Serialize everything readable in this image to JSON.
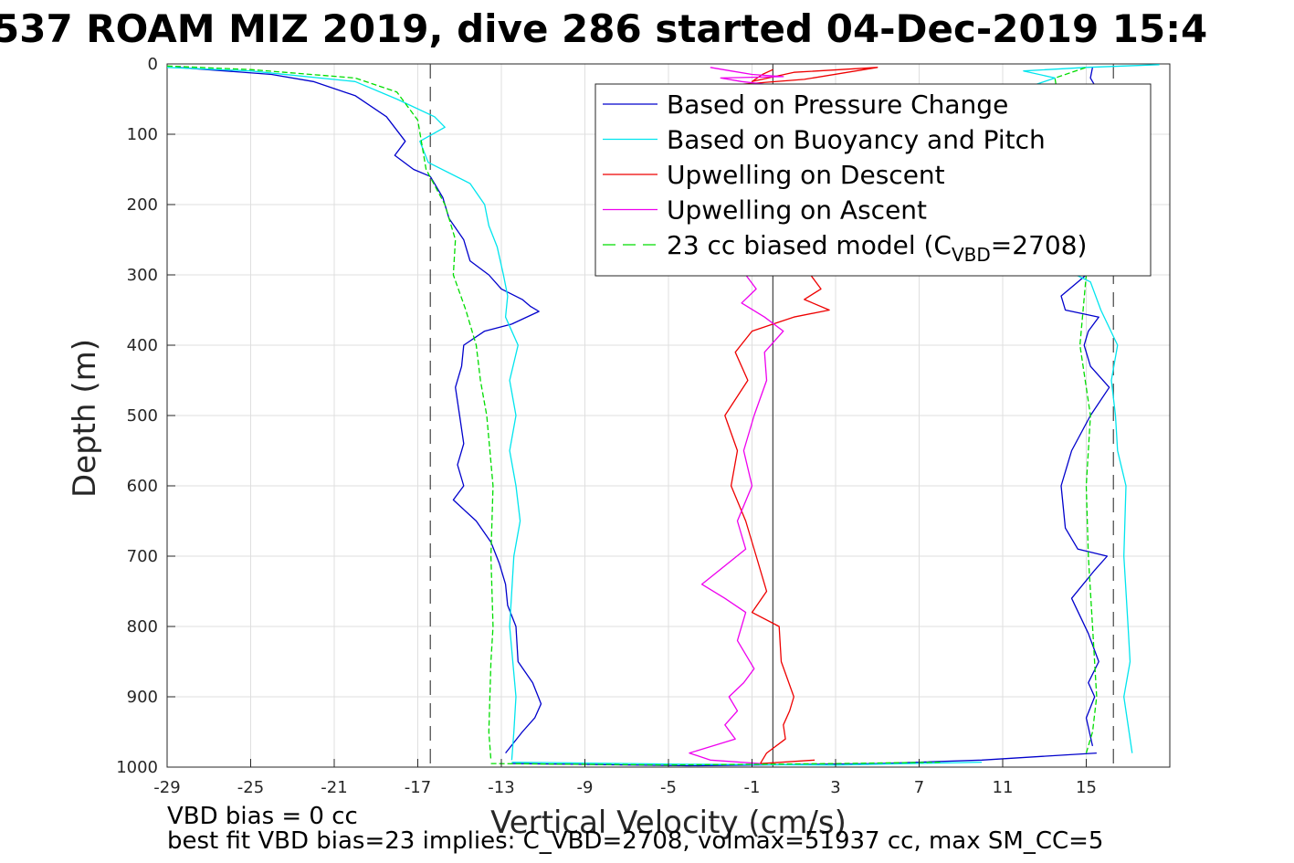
{
  "chart_data": {
    "type": "line",
    "title": "537 ROAM MIZ 2019, dive 286 started 04-Dec-2019 15:4",
    "xlabel": "Vertical Velocity (cm/s)",
    "ylabel": "Depth (m)",
    "xlim": [
      -29,
      19
    ],
    "ylim": [
      0,
      1000
    ],
    "y_reversed": true,
    "grid": true,
    "x_ticks": [
      -29,
      -25,
      -21,
      -17,
      -13,
      -9,
      -5,
      -1,
      3,
      7,
      11,
      15
    ],
    "y_ticks": [
      0,
      100,
      200,
      300,
      400,
      500,
      600,
      700,
      800,
      900,
      1000
    ],
    "legend_position": "top-right",
    "legend": [
      {
        "label": "Based on Pressure Change",
        "color": "#0000cc",
        "dash": "solid"
      },
      {
        "label": "Based on Buoyancy and Pitch",
        "color": "#00e5ee",
        "dash": "solid"
      },
      {
        "label": "Upwelling on Descent",
        "color": "#ee0000",
        "dash": "solid"
      },
      {
        "label": "Upwelling on Ascent",
        "color": "#ee00ee",
        "dash": "solid"
      },
      {
        "label": "23 cc biased model (C",
        "sub": "VBD",
        "suffix": "=2708)",
        "color": "#00dd00",
        "dash": "dashed"
      }
    ],
    "reference_lines": {
      "dashed_x": [
        -16.4,
        16.3
      ],
      "solid_x": [
        0.0
      ]
    },
    "series": [
      {
        "name": "Based on Pressure Change",
        "color": "#0000cc",
        "groups": [
          {
            "x": [
              -28.5,
              -24,
              -22,
              -20,
              -18.5,
              -17.6,
              -18.1,
              -17.2,
              -16.4,
              -15.8,
              -15.5,
              -14.8,
              -14.5,
              -13.6,
              -13.0,
              -12.0,
              -11.6,
              -11.2,
              -12.5,
              -13.8,
              -14.8,
              -14.9,
              -15.2,
              -15.0,
              -14.8,
              -15.1,
              -14.8,
              -15.3,
              -14.2,
              -13.5,
              -13.1,
              -12.8,
              -12.7,
              -12.3,
              -12.2,
              -11.5,
              -11.1,
              -11.4,
              -12.0,
              -12.8
            ],
            "y": [
              5,
              15,
              25,
              45,
              75,
              110,
              130,
              150,
              160,
              190,
              220,
              250,
              280,
              300,
              320,
              335,
              345,
              352,
              370,
              380,
              400,
              430,
              460,
              500,
              540,
              570,
              600,
              620,
              650,
              680,
              710,
              740,
              770,
              800,
              850,
              880,
              910,
              930,
              950,
              980
            ]
          },
          {
            "x": [
              -12.5,
              -4,
              5,
              10,
              15.5
            ],
            "y": [
              995,
              998,
              995,
              990,
              980
            ]
          },
          {
            "x": [
              15.3,
              15.0,
              15.4,
              15.1,
              15.6,
              15.1,
              14.3,
              15.4,
              16.0,
              14.6,
              14.0,
              13.8,
              14.3,
              15.2,
              16.1,
              15.2,
              14.9,
              15.1,
              15.6,
              14.0,
              13.8,
              14.6,
              15.4,
              15.2,
              14.6,
              15.6,
              15.2,
              15.3
            ],
            "y": [
              970,
              930,
              900,
              880,
              850,
              810,
              760,
              720,
              700,
              690,
              660,
              600,
              550,
              500,
              460,
              430,
              400,
              380,
              360,
              350,
              330,
              310,
              290,
              280,
              80,
              40,
              20,
              5
            ]
          }
        ]
      },
      {
        "name": "Based on Buoyancy and Pitch",
        "color": "#00e5ee",
        "groups": [
          {
            "x": [
              -29,
              -25,
              -20,
              -18,
              -16.2,
              -15.7,
              -16.9,
              -16.5,
              -14.5,
              -13.8,
              -13.6,
              -13.2,
              -12.9,
              -12.7,
              -12.8,
              -12.2,
              -12.6,
              -12.3,
              -12.6,
              -12.3,
              -12.1,
              -12.4,
              -12.6,
              -12.3,
              -12.4,
              -12.5
            ],
            "y": [
              5,
              10,
              25,
              50,
              75,
              90,
              110,
              140,
              170,
              200,
              230,
              260,
              300,
              330,
              360,
              400,
              450,
              500,
              550,
              600,
              650,
              700,
              800,
              900,
              950,
              990
            ]
          },
          {
            "x": [
              -12.5,
              -4,
              3,
              10
            ],
            "y": [
              993,
              996,
              997,
              993
            ]
          },
          {
            "x": [
              17.2,
              16.8,
              17.1,
              17.0,
              16.8,
              16.9,
              16.5,
              16.4,
              16.2,
              16.5,
              15.7,
              15.2,
              14.5,
              12.5,
              13.5,
              12.0,
              15.0,
              18.5
            ],
            "y": [
              980,
              900,
              850,
              800,
              700,
              600,
              550,
              500,
              450,
              400,
              350,
              310,
              300,
              30,
              20,
              10,
              5,
              1
            ]
          }
        ]
      },
      {
        "name": "Upwelling on Descent",
        "color": "#ee0000",
        "groups": [
          {
            "x": [
              -2.0,
              1.5,
              5.0,
              1.0,
              -1.0,
              -0.5,
              0.0
            ],
            "y": [
              30,
              22,
              5,
              12,
              25,
              15,
              8
            ]
          },
          {
            "x": [
              1.8,
              2.3,
              1.5,
              2.7,
              1.0,
              0.0,
              -1.0,
              -1.8,
              -1.2,
              -2.3,
              -1.7,
              -2.0,
              -1.3,
              -0.8,
              -0.3,
              -1.0,
              0.3,
              0.4,
              1.0,
              0.8,
              0.5,
              0.6,
              -0.3,
              -0.6,
              2.0
            ],
            "y": [
              300,
              320,
              335,
              350,
              360,
              370,
              380,
              410,
              450,
              500,
              550,
              600,
              650,
              700,
              750,
              780,
              800,
              850,
              900,
              920,
              940,
              960,
              980,
              995,
              990
            ]
          }
        ]
      },
      {
        "name": "Upwelling on Ascent",
        "color": "#ee00ee",
        "groups": [
          {
            "x": [
              -3.0,
              -2.0,
              -1.0,
              0.5,
              -2.5,
              -1.5,
              0.0
            ],
            "y": [
              5,
              10,
              15,
              18,
              20,
              25,
              30
            ]
          },
          {
            "x": [
              -1.3,
              -0.8,
              -1.5,
              -0.4,
              0.5,
              -0.4,
              -0.3,
              -0.9,
              -1.4,
              -1.0,
              -1.7,
              -1.3,
              -3.4,
              -2.3,
              -1.3,
              -1.7,
              -0.9,
              -1.4,
              -2.1,
              -1.7,
              -2.3,
              -1.8,
              -4.0,
              -3.0,
              -0.6
            ],
            "y": [
              300,
              320,
              340,
              360,
              380,
              410,
              450,
              500,
              550,
              600,
              650,
              690,
              740,
              760,
              780,
              820,
              860,
              880,
              900,
              920,
              940,
              960,
              980,
              990,
              995
            ]
          }
        ]
      },
      {
        "name": "23 cc biased model",
        "color": "#00dd00",
        "groups": [
          {
            "x": [
              -29,
              -25,
              -20,
              -18,
              -17.0,
              -16.6,
              -15.7,
              -15.2,
              -15.3,
              -14.7,
              -14.2,
              -14.0,
              -13.7,
              -13.4,
              -13.5,
              -13.4,
              -13.5,
              -13.6,
              -13.5
            ],
            "y": [
              3,
              8,
              20,
              40,
              80,
              150,
              200,
              250,
              300,
              350,
              400,
              450,
              500,
              600,
              700,
              800,
              850,
              950,
              990
            ]
          },
          {
            "x": [
              -13.5,
              -5,
              3,
              8
            ],
            "y": [
              995,
              997,
              995,
              993
            ]
          },
          {
            "x": [
              15.0,
              15.3,
              15.5,
              15.3,
              15.1,
              15.0,
              15.2,
              14.7,
              15.0,
              13.5,
              15.0
            ],
            "y": [
              980,
              950,
              900,
              800,
              700,
              600,
              500,
              400,
              300,
              20,
              5
            ]
          }
        ]
      }
    ],
    "footer_lines": [
      "VBD bias = 0 cc",
      "best fit VBD bias=23 implies: C_VBD=2708, volmax=51937 cc, max SM_CC=5"
    ]
  }
}
